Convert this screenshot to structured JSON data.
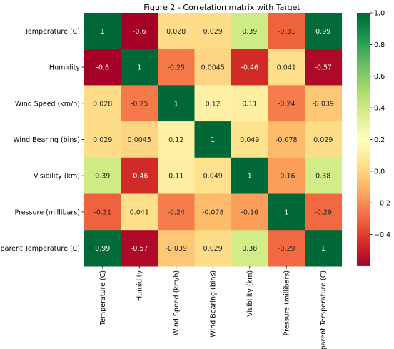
{
  "chart_data": {
    "type": "heatmap",
    "title": "Figure 2 - Correlation matrix with Target",
    "xlabel": "",
    "ylabel": "",
    "rows": [
      "Temperature (C)",
      "Humidity",
      "Wind Speed (km/h)",
      "Wind Bearing (bins)",
      "Visibility (km)",
      "Pressure (millibars)",
      "Apparent Temperature (C)"
    ],
    "columns": [
      "Temperature (C)",
      "Humidity",
      "Wind Speed (km/h)",
      "Wind Bearing (bins)",
      "Visibility (km)",
      "Pressure (millibars)",
      "Apparent Temperature (C)"
    ],
    "values": [
      [
        1,
        -0.6,
        0.028,
        0.029,
        0.39,
        -0.31,
        0.99
      ],
      [
        -0.6,
        1,
        -0.25,
        0.0045,
        -0.46,
        0.041,
        -0.57
      ],
      [
        0.028,
        -0.25,
        1,
        0.12,
        0.11,
        -0.24,
        -0.039
      ],
      [
        0.029,
        0.0045,
        0.12,
        1,
        0.049,
        -0.078,
        0.029
      ],
      [
        0.39,
        -0.46,
        0.11,
        0.049,
        1,
        -0.16,
        0.38
      ],
      [
        -0.31,
        0.041,
        -0.24,
        -0.078,
        -0.16,
        1,
        -0.29
      ],
      [
        0.99,
        -0.57,
        -0.039,
        0.029,
        0.38,
        -0.29,
        1
      ]
    ],
    "annotations": [
      [
        "1",
        "-0.6",
        "0.028",
        "0.029",
        "0.39",
        "-0.31",
        "0.99"
      ],
      [
        "-0.6",
        "1",
        "-0.25",
        "0.0045",
        "-0.46",
        "0.041",
        "-0.57"
      ],
      [
        "0.028",
        "-0.25",
        "1",
        "0.12",
        "0.11",
        "-0.24",
        "-0.039"
      ],
      [
        "0.029",
        "0.0045",
        "0.12",
        "1",
        "0.049",
        "-0.078",
        "0.029"
      ],
      [
        "0.39",
        "-0.46",
        "0.11",
        "0.049",
        "1",
        "-0.16",
        "0.38"
      ],
      [
        "-0.31",
        "0.041",
        "-0.24",
        "-0.078",
        "-0.16",
        "1",
        "-0.29"
      ],
      [
        "0.99",
        "-0.57",
        "-0.039",
        "0.029",
        "0.38",
        "-0.29",
        "1"
      ]
    ],
    "colormap": "RdYlGn",
    "value_range": [
      -0.6,
      1.0
    ],
    "colorbar": {
      "ticks": [
        1.0,
        0.8,
        0.6,
        0.4,
        0.2,
        0.0,
        -0.2,
        -0.4
      ],
      "tick_labels": [
        "1.0",
        "0.8",
        "0.6",
        "0.4",
        "0.2",
        "0.0",
        "−0.2",
        "−0.4"
      ]
    },
    "grid": false,
    "legend": "colorbar right"
  }
}
